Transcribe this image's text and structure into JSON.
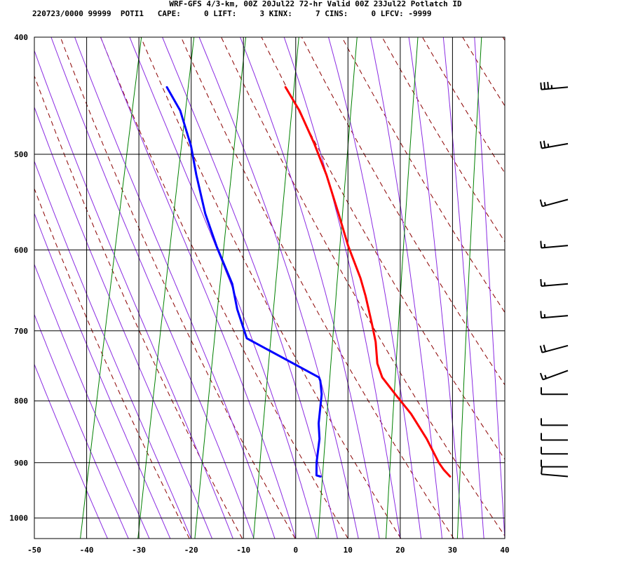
{
  "header": {
    "title": "WRF-GFS 4/3-km, 00Z 20Jul22 72-hr Valid 00Z 23Jul22 Potlatch ID",
    "subtitle": "220723/0000 99999  POTI1   CAPE:     0 LIFT:     3 KINX:     7 CINS:     0 LFCV: -9999"
  },
  "chart_data": {
    "type": "skew-t sounding",
    "title": "WRF-GFS 4/3-km, 00Z 20Jul22 72-hr Valid 00Z 23Jul22 Potlatch ID",
    "xlabel": "",
    "ylabel": "",
    "x_unit": "degC",
    "y_unit": "hPa",
    "xlim": [
      -50,
      40
    ],
    "ylim": [
      1040,
      400
    ],
    "y_scale": "log",
    "grid": true,
    "x_ticks": [
      -50,
      -40,
      -30,
      -20,
      -10,
      0,
      10,
      20,
      30,
      40
    ],
    "y_ticks": [
      400,
      500,
      600,
      700,
      800,
      900,
      1000
    ],
    "colors": {
      "temperature": "#ff0000",
      "dewpoint": "#0000ff",
      "dry_adiabat": "#8b0000",
      "moist_adiabat": "#8a2be2",
      "mixing_ratio": "#008000",
      "grid": "#000000",
      "wind_barb": "#000000"
    },
    "series": [
      {
        "points": [
          {
            "p": 924,
            "t": 27
          },
          {
            "p": 912,
            "t": 25.5
          },
          {
            "p": 900,
            "t": 24.3
          },
          {
            "p": 860,
            "t": 21
          },
          {
            "p": 820,
            "t": 17
          },
          {
            "p": 790,
            "t": 13.2
          },
          {
            "p": 765,
            "t": 10
          },
          {
            "p": 745,
            "t": 8.5
          },
          {
            "p": 715,
            "t": 7.3
          },
          {
            "p": 690,
            "t": 5.8
          },
          {
            "p": 655,
            "t": 3.5
          },
          {
            "p": 633,
            "t": 1.8
          },
          {
            "p": 595,
            "t": -1.9
          },
          {
            "p": 560,
            "t": -5
          },
          {
            "p": 520,
            "t": -8.9
          },
          {
            "p": 490,
            "t": -12.5
          },
          {
            "p": 460,
            "t": -16.7
          },
          {
            "p": 440,
            "t": -20.3
          }
        ]
      },
      {
        "points": [
          {
            "p": 924,
            "t": 2.2
          },
          {
            "p": 922,
            "t": 1.4
          },
          {
            "p": 900,
            "t": 0.9
          },
          {
            "p": 860,
            "t": 0.5
          },
          {
            "p": 835,
            "t": -0.3
          },
          {
            "p": 790,
            "t": -0.9
          },
          {
            "p": 770,
            "t": -1.7
          },
          {
            "p": 765,
            "t": -2.1
          },
          {
            "p": 710,
            "t": -17.5
          },
          {
            "p": 672,
            "t": -20.5
          },
          {
            "p": 640,
            "t": -22.5
          },
          {
            "p": 596,
            "t": -27
          },
          {
            "p": 560,
            "t": -30.5
          },
          {
            "p": 520,
            "t": -33.8
          },
          {
            "p": 492,
            "t": -36
          },
          {
            "p": 460,
            "t": -39.5
          },
          {
            "p": 440,
            "t": -43
          }
        ]
      }
    ],
    "wind_barbs": [
      {
        "p": 440,
        "dir": 265,
        "speed_kt": 35
      },
      {
        "p": 490,
        "dir": 260,
        "speed_kt": 25
      },
      {
        "p": 545,
        "dir": 255,
        "speed_kt": 15
      },
      {
        "p": 595,
        "dir": 265,
        "speed_kt": 15
      },
      {
        "p": 640,
        "dir": 265,
        "speed_kt": 15
      },
      {
        "p": 680,
        "dir": 265,
        "speed_kt": 15
      },
      {
        "p": 720,
        "dir": 255,
        "speed_kt": 20
      },
      {
        "p": 755,
        "dir": 250,
        "speed_kt": 15
      },
      {
        "p": 790,
        "dir": 270,
        "speed_kt": 10
      },
      {
        "p": 838,
        "dir": 270,
        "speed_kt": 10
      },
      {
        "p": 862,
        "dir": 270,
        "speed_kt": 10
      },
      {
        "p": 885,
        "dir": 270,
        "speed_kt": 10
      },
      {
        "p": 907,
        "dir": 270,
        "speed_kt": 10
      },
      {
        "p": 924,
        "dir": 275,
        "speed_kt": 10
      }
    ]
  }
}
